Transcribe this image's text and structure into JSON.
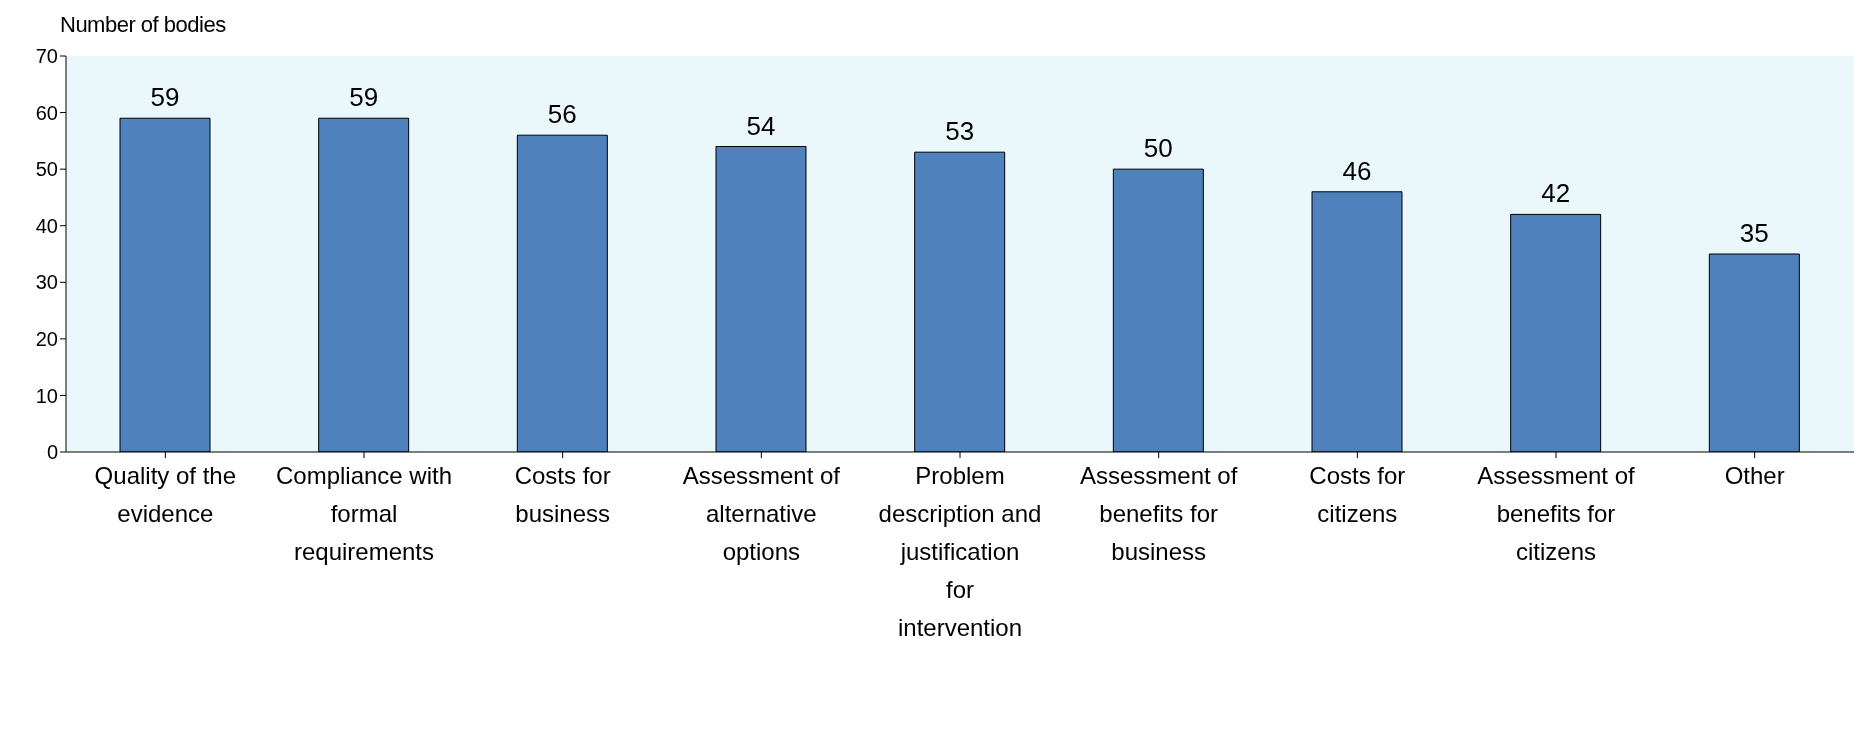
{
  "chart_data": {
    "type": "bar",
    "ylabel": "Number of bodies",
    "categories": [
      "Quality of the evidence",
      "Compliance with formal requirements",
      "Costs for business",
      "Assessment of alternative options",
      "Problem description and justification for intervention",
      "Assessment of benefits for business",
      "Costs for citizens",
      "Assessment of benefits for citizens",
      "Other"
    ],
    "values": [
      59,
      59,
      56,
      54,
      53,
      50,
      46,
      42,
      35
    ],
    "color": "#4f81bd",
    "ylim": [
      0,
      70
    ],
    "yticks": [
      0,
      10,
      20,
      30,
      40,
      50,
      60,
      70
    ],
    "data_labels": true,
    "legend": false
  }
}
